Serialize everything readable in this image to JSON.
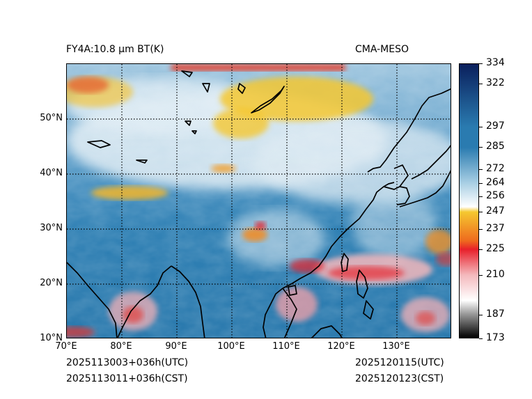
{
  "header": {
    "product": "FY4A:10.8 µm BT(K)",
    "source": "CMA-MESO"
  },
  "footer": {
    "init_utc": "2025113003+036h(UTC)",
    "init_cst": "2025113011+036h(CST)",
    "valid_utc": "2025120115(UTC)",
    "valid_cst": "2025120123(CST)"
  },
  "map": {
    "lon_range": [
      70,
      140
    ],
    "lat_range": [
      10,
      60
    ],
    "lon_ticks": [
      "70°E",
      "80°E",
      "90°E",
      "100°E",
      "110°E",
      "120°E",
      "130°E"
    ],
    "lat_ticks": [
      "50°N",
      "40°N",
      "30°N",
      "20°N",
      "10°N"
    ],
    "lon_tick_values": [
      70,
      80,
      90,
      100,
      110,
      120,
      130
    ],
    "lat_tick_values": [
      50,
      40,
      30,
      20,
      10
    ],
    "gridline_style": "dotted"
  },
  "colorbar": {
    "range": [
      173,
      334
    ],
    "labels": [
      "334",
      "322",
      "297",
      "285",
      "272",
      "264",
      "256",
      "247",
      "237",
      "225",
      "210",
      "187",
      "173"
    ],
    "values": [
      334,
      322,
      297,
      285,
      272,
      264,
      256,
      247,
      237,
      225,
      210,
      187,
      173
    ],
    "colors": {
      "deep_blue": "#0a1f5c",
      "mid_blue": "#2a7bb0",
      "light_blue": "#a9cfe4",
      "white": "#ffffff",
      "yellow": "#f5c830",
      "orange": "#ee6a1e",
      "red": "#e8202a",
      "pink": "#f4b8bc",
      "gray": "#9a9a9a",
      "black": "#000000"
    }
  }
}
